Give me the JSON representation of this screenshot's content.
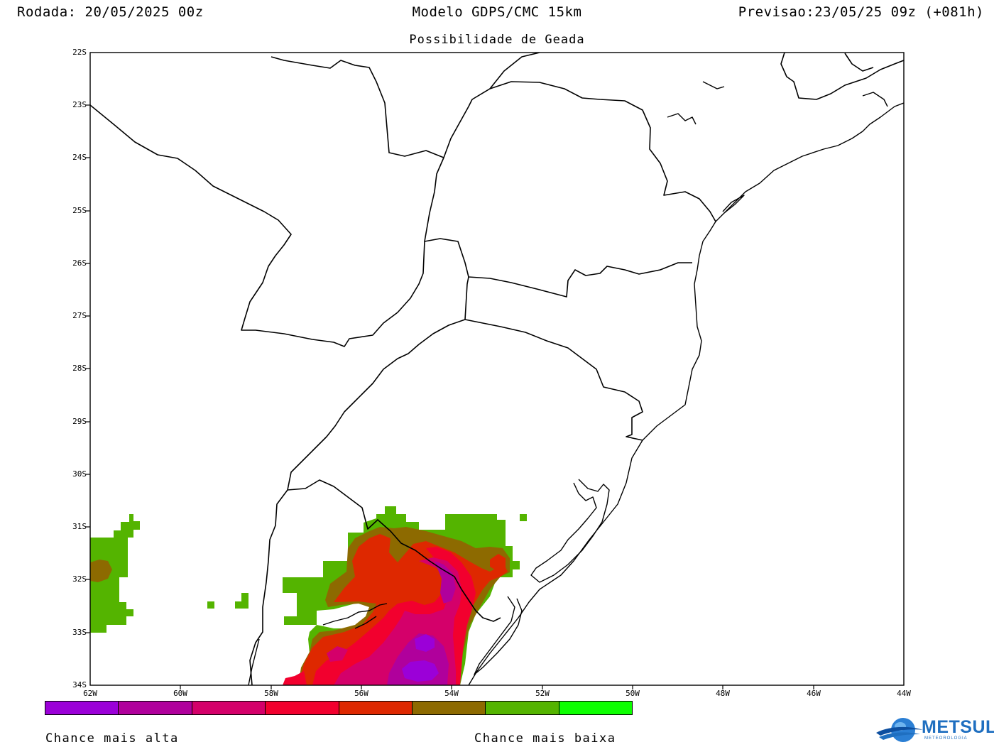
{
  "header": {
    "run": "Rodada: 20/05/2025 00z",
    "model": "Modelo GDPS/CMC 15km",
    "valid": "Previsao:23/05/25 09z (+081h)"
  },
  "subtitle": "Possibilidade de Geada",
  "map": {
    "lat_labels": [
      "22S",
      "23S",
      "24S",
      "25S",
      "26S",
      "27S",
      "28S",
      "29S",
      "30S",
      "31S",
      "32S",
      "33S",
      "34S"
    ],
    "lon_labels": [
      "62W",
      "60W",
      "58W",
      "56W",
      "54W",
      "52W",
      "50W",
      "48W",
      "46W",
      "44W"
    ],
    "colors": {
      "c1": "#9b00d8",
      "c2": "#b0009c",
      "c3": "#d4006a",
      "c4": "#f2002e",
      "c5": "#de2800",
      "c6": "#8d6a00",
      "c7": "#54b400",
      "c8": "#0cff00"
    }
  },
  "colorbar": {
    "colors": [
      "#9b00d8",
      "#b0009c",
      "#d4006a",
      "#f2002e",
      "#de2800",
      "#8d6a00",
      "#54b400",
      "#0cff00"
    ],
    "label_high": "Chance mais alta",
    "label_low": "Chance mais baixa"
  },
  "logo": {
    "name": "METSUL",
    "subtitle": "METEOROLOGIA",
    "icon": "globe-swoosh-icon"
  }
}
